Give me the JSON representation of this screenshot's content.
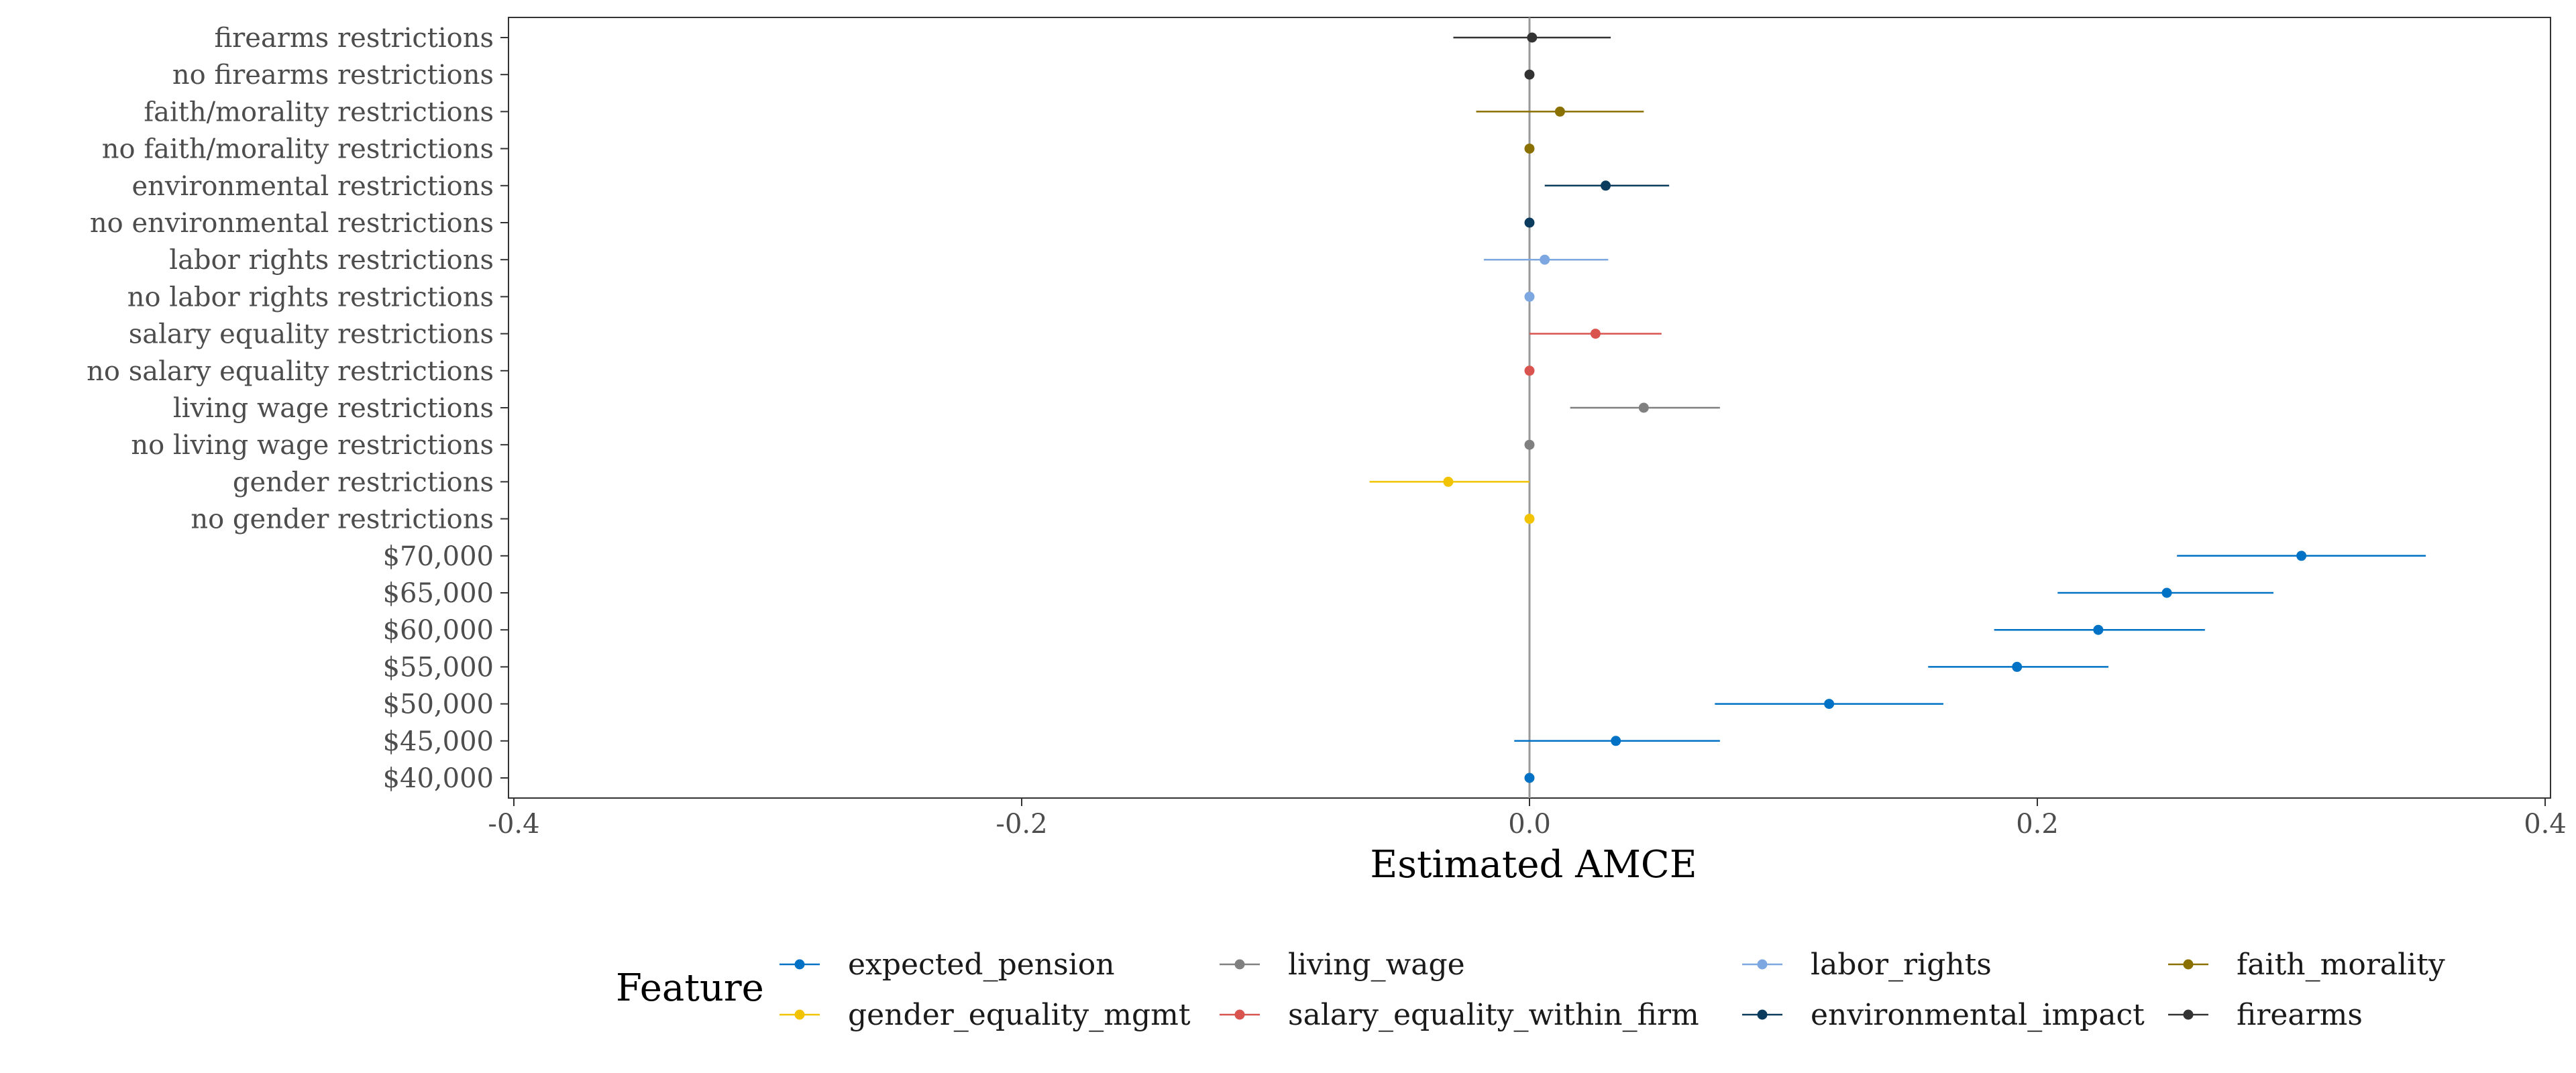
{
  "chart_data": {
    "type": "scatter",
    "subtype": "point-range forest plot",
    "xlabel": "Estimated AMCE",
    "xlim": [
      -0.4,
      0.4
    ],
    "x_ticks": [
      -0.4,
      -0.2,
      0.0,
      0.2,
      0.4
    ],
    "x_tick_labels": [
      "-0.4",
      "-0.2",
      "0.0",
      "0.2",
      "0.4"
    ],
    "reference_line_x": 0,
    "grid": false,
    "legend": {
      "title": "Feature",
      "position": "bottom",
      "entries": [
        {
          "name": "expected_pension",
          "color": "#0072C6"
        },
        {
          "name": "living_wage",
          "color": "#808080"
        },
        {
          "name": "labor_rights",
          "color": "#7DA7E0"
        },
        {
          "name": "faith_morality",
          "color": "#8A7000"
        },
        {
          "name": "gender_equality_mgmt",
          "color": "#F2C300"
        },
        {
          "name": "salary_equality_within_firm",
          "color": "#D9534F"
        },
        {
          "name": "environmental_impact",
          "color": "#0B3C5D"
        },
        {
          "name": "firearms",
          "color": "#333333"
        }
      ]
    },
    "points": [
      {
        "label": "firearms restrictions",
        "feature": "firearms",
        "estimate": 0.001,
        "lower": -0.03,
        "upper": 0.032
      },
      {
        "label": "no firearms restrictions",
        "feature": "firearms",
        "estimate": 0.0,
        "lower": 0.0,
        "upper": 0.0
      },
      {
        "label": "faith/morality restrictions",
        "feature": "faith_morality",
        "estimate": 0.012,
        "lower": -0.021,
        "upper": 0.045
      },
      {
        "label": "no faith/morality restrictions",
        "feature": "faith_morality",
        "estimate": 0.0,
        "lower": 0.0,
        "upper": 0.0
      },
      {
        "label": "environmental restrictions",
        "feature": "environmental_impact",
        "estimate": 0.03,
        "lower": 0.006,
        "upper": 0.055
      },
      {
        "label": "no environmental restrictions",
        "feature": "environmental_impact",
        "estimate": 0.0,
        "lower": 0.0,
        "upper": 0.0
      },
      {
        "label": "labor rights restrictions",
        "feature": "labor_rights",
        "estimate": 0.006,
        "lower": -0.018,
        "upper": 0.031
      },
      {
        "label": "no labor rights restrictions",
        "feature": "labor_rights",
        "estimate": 0.0,
        "lower": 0.0,
        "upper": 0.0
      },
      {
        "label": "salary equality restrictions",
        "feature": "salary_equality_within_firm",
        "estimate": 0.026,
        "lower": 0.0,
        "upper": 0.052
      },
      {
        "label": "no salary equality restrictions",
        "feature": "salary_equality_within_firm",
        "estimate": 0.0,
        "lower": 0.0,
        "upper": 0.0
      },
      {
        "label": "living wage restrictions",
        "feature": "living_wage",
        "estimate": 0.045,
        "lower": 0.016,
        "upper": 0.075
      },
      {
        "label": "no living wage restrictions",
        "feature": "living_wage",
        "estimate": 0.0,
        "lower": 0.0,
        "upper": 0.0
      },
      {
        "label": "gender restrictions",
        "feature": "gender_equality_mgmt",
        "estimate": -0.032,
        "lower": -0.063,
        "upper": 0.0
      },
      {
        "label": "no gender restrictions",
        "feature": "gender_equality_mgmt",
        "estimate": 0.0,
        "lower": 0.0,
        "upper": 0.0
      },
      {
        "label": "$70,000",
        "feature": "expected_pension",
        "estimate": 0.304,
        "lower": 0.255,
        "upper": 0.353
      },
      {
        "label": "$65,000",
        "feature": "expected_pension",
        "estimate": 0.251,
        "lower": 0.208,
        "upper": 0.293
      },
      {
        "label": "$60,000",
        "feature": "expected_pension",
        "estimate": 0.224,
        "lower": 0.183,
        "upper": 0.266
      },
      {
        "label": "$55,000",
        "feature": "expected_pension",
        "estimate": 0.192,
        "lower": 0.157,
        "upper": 0.228
      },
      {
        "label": "$50,000",
        "feature": "expected_pension",
        "estimate": 0.118,
        "lower": 0.073,
        "upper": 0.163
      },
      {
        "label": "$45,000",
        "feature": "expected_pension",
        "estimate": 0.034,
        "lower": -0.006,
        "upper": 0.075
      },
      {
        "label": "$40,000",
        "feature": "expected_pension",
        "estimate": 0.0,
        "lower": 0.0,
        "upper": 0.0
      }
    ]
  }
}
